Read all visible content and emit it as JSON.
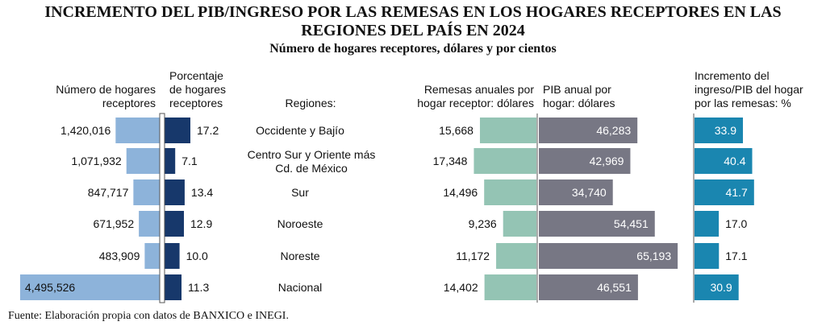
{
  "title_line1": "INCREMENTO DEL PIB/INGRESO POR LAS REMESAS EN LOS HOGARES RECEPTORES EN LAS",
  "title_line2": "REGIONES DEL PAÍS EN 2024",
  "subtitle": "Número de hogares receptores, dólares y por cientos",
  "source": "Fuente: Elaboración propia con datos de BANXICO e INEGI.",
  "colors": {
    "hogares": "#8db3da",
    "porcentaje": "#17386b",
    "remesas": "#94c4b4",
    "pib": "#777784",
    "incremento": "#1a86b0"
  },
  "chart_data": {
    "type": "bar",
    "orientation": "horizontal",
    "categories_header": "Regiones:",
    "categories": [
      [
        "Occidente y Bajío"
      ],
      [
        "Centro Sur y Oriente más",
        "Cd. de México"
      ],
      [
        "Sur"
      ],
      [
        "Noroeste"
      ],
      [
        "Noreste"
      ],
      [
        "Nacional"
      ]
    ],
    "series": [
      {
        "name": [
          "Número de hogares",
          "receptores"
        ],
        "values": [
          1420016,
          1071932,
          847717,
          671952,
          483909,
          4495526
        ],
        "labels": [
          "1,420,016",
          "1,071,932",
          "847,717",
          "671,952",
          "483,909",
          "4,495,526"
        ]
      },
      {
        "name": [
          "Porcentaje",
          "de hogares",
          "receptores"
        ],
        "values": [
          17.2,
          7.1,
          13.4,
          12.9,
          10.0,
          11.3
        ],
        "labels": [
          "17.2",
          "7.1",
          "13.4",
          "12.9",
          "10.0",
          "11.3"
        ]
      },
      {
        "name": [
          "Remesas anuales por",
          "hogar receptor: dólares"
        ],
        "values": [
          15668,
          17348,
          14496,
          9236,
          11172,
          14402
        ],
        "labels": [
          "15,668",
          "17,348",
          "14,496",
          "9,236",
          "11,172",
          "14,402"
        ]
      },
      {
        "name": [
          "PIB anual por",
          "hogar: dólares"
        ],
        "values": [
          46283,
          42969,
          34740,
          54451,
          65193,
          46551
        ],
        "labels": [
          "46,283",
          "42,969",
          "34,740",
          "54,451",
          "65,193",
          "46,551"
        ]
      },
      {
        "name": [
          "Incremento del",
          "ingreso/PIB del hogar",
          "por las remesas: %"
        ],
        "values": [
          33.9,
          40.4,
          41.7,
          17.0,
          17.1,
          30.9
        ],
        "labels": [
          "33.9",
          "40.4",
          "41.7",
          "17.0",
          "17.1",
          "30.9"
        ]
      }
    ]
  }
}
